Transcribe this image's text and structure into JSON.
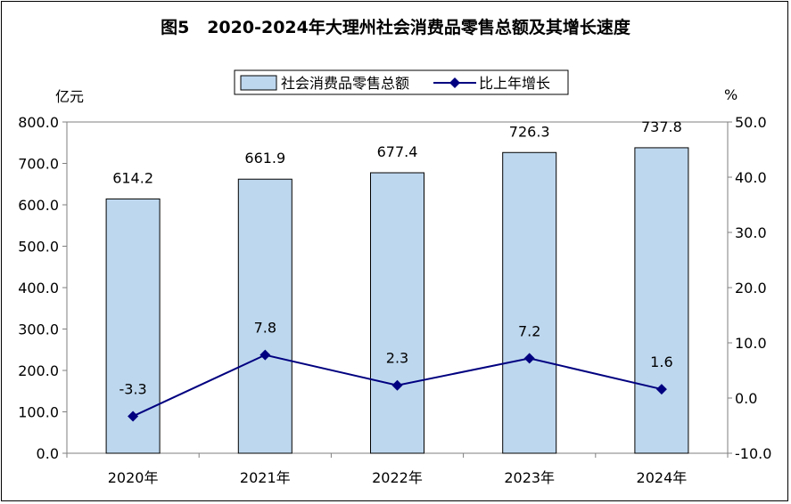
{
  "chart_data": {
    "type": "bar+line",
    "title": "图5   2020-2024年大理州社会消费品零售总额及其增长速度",
    "categories": [
      "2020年",
      "2021年",
      "2022年",
      "2023年",
      "2024年"
    ],
    "series": [
      {
        "name": "社会消费品零售总额",
        "type": "bar",
        "axis": "left",
        "values": [
          614.2,
          661.9,
          677.4,
          726.3,
          737.8
        ],
        "labels": [
          "614.2",
          "661.9",
          "677.4",
          "726.3",
          "737.8"
        ],
        "color": "#bdd7ee"
      },
      {
        "name": "比上年增长",
        "type": "line",
        "axis": "right",
        "values": [
          -3.3,
          7.8,
          2.3,
          7.2,
          1.6
        ],
        "labels": [
          "-3.3",
          "7.8",
          "2.3",
          "7.2",
          "1.6"
        ],
        "color": "#000080"
      }
    ],
    "y_left": {
      "unit": "亿元",
      "range": [
        0,
        800
      ],
      "ticks": [
        "0.0",
        "100.0",
        "200.0",
        "300.0",
        "400.0",
        "500.0",
        "600.0",
        "700.0",
        "800.0"
      ]
    },
    "y_right": {
      "unit": "%",
      "range": [
        -10,
        50
      ],
      "ticks": [
        "-10.0",
        "0.0",
        "10.0",
        "20.0",
        "30.0",
        "40.0",
        "50.0"
      ]
    },
    "legend_position": "top-center",
    "grid": false
  }
}
